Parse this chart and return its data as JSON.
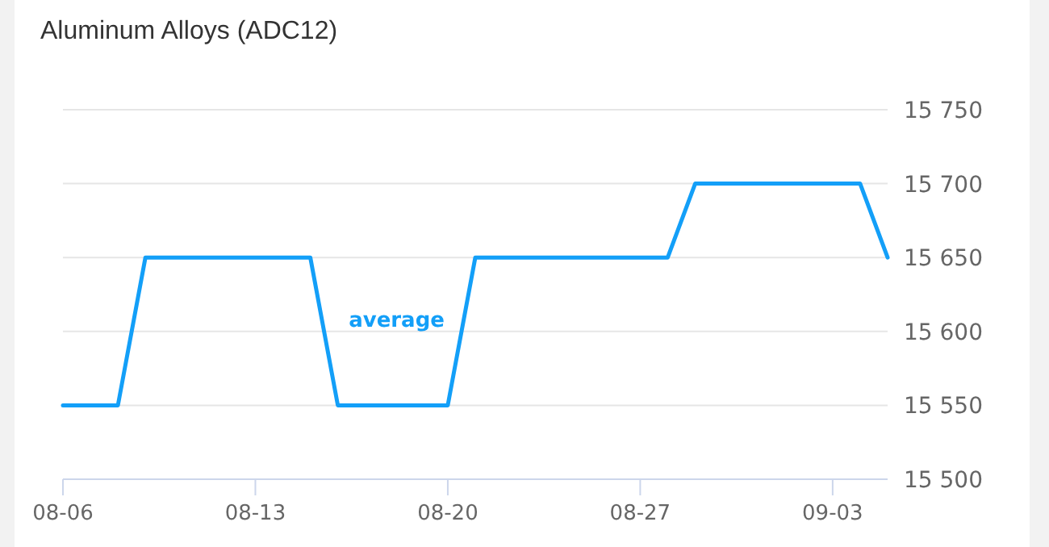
{
  "chart_data": {
    "type": "line",
    "title": "Aluminum Alloys (ADC12)",
    "x": [
      "--08-06",
      "--08-08",
      "--08-09",
      "--08-15",
      "--08-16",
      "--08-20",
      "--08-21",
      "--08-28",
      "--08-29",
      "--09-04",
      "--09-05"
    ],
    "series": [
      {
        "name": "average",
        "color": "#139ff8",
        "values": [
          15550,
          15550,
          15650,
          15650,
          15550,
          15550,
          15650,
          15650,
          15700,
          15700,
          15650
        ]
      }
    ],
    "xlim": [
      "--08-06",
      "--09-05"
    ],
    "xticks": [
      {
        "value": "--08-06",
        "label": "08-06"
      },
      {
        "value": "--08-13",
        "label": "08-13"
      },
      {
        "value": "--08-20",
        "label": "08-20"
      },
      {
        "value": "--08-27",
        "label": "08-27"
      },
      {
        "value": "--09-03",
        "label": "09-03"
      }
    ],
    "ylim": [
      15500,
      15750
    ],
    "yticks": [
      {
        "value": 15500,
        "label": "15 500"
      },
      {
        "value": 15550,
        "label": "15 550"
      },
      {
        "value": 15600,
        "label": "15 600"
      },
      {
        "value": 15650,
        "label": "15 650"
      },
      {
        "value": 15700,
        "label": "15 700"
      },
      {
        "value": 15750,
        "label": "15 750"
      }
    ],
    "grid": "y",
    "marker": "none",
    "line_style": "solid"
  }
}
